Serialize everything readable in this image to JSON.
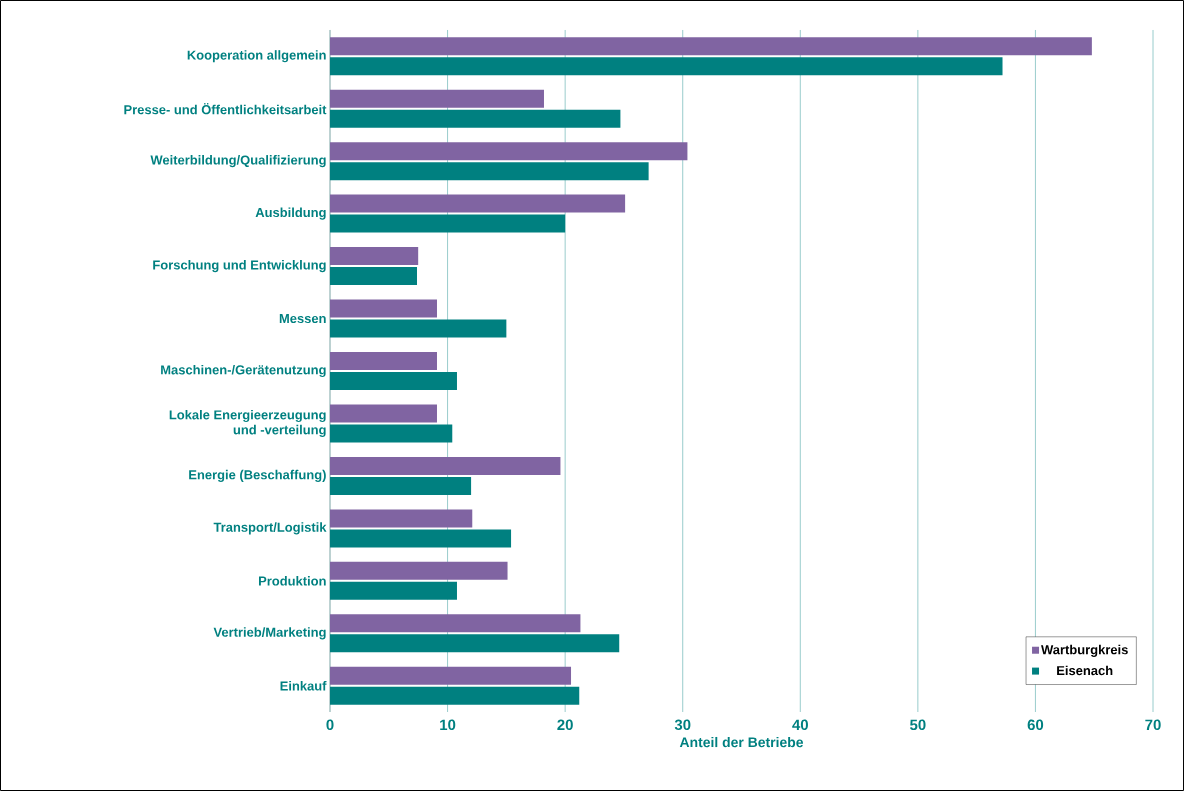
{
  "chart_data": {
    "type": "bar",
    "orientation": "horizontal",
    "xlabel": "Anteil der Betriebe",
    "categories": [
      "Kooperation allgemein",
      "Presse- und Öffentlichkeitsarbeit",
      "Weiterbildung/Qualifizierung",
      "Ausbildung",
      "Forschung und Entwicklung",
      "Messen",
      "Maschinen-/Gerätenutzung",
      "Lokale Energieerzeugung und -verteilung",
      "Energie (Beschaffung)",
      "Transport/Logistik",
      "Produktion",
      "Vertrieb/Marketing",
      "Einkauf"
    ],
    "series": [
      {
        "name": "Wartburgkreis",
        "color": "#8064a2",
        "values": [
          64.8,
          18.2,
          30.4,
          25.1,
          7.5,
          9.1,
          9.1,
          9.1,
          19.6,
          12.1,
          15.1,
          21.3,
          20.5
        ]
      },
      {
        "name": "Eisenach",
        "color": "#008080",
        "values": [
          57.2,
          24.7,
          27.1,
          20.0,
          7.4,
          15.0,
          10.8,
          10.4,
          12.0,
          15.4,
          10.8,
          24.6,
          21.2
        ]
      }
    ],
    "xlim": [
      0,
      70
    ],
    "xticks": [
      0,
      10,
      20,
      30,
      40,
      50,
      60,
      70
    ],
    "grid": "x",
    "legend": "bottom right"
  }
}
